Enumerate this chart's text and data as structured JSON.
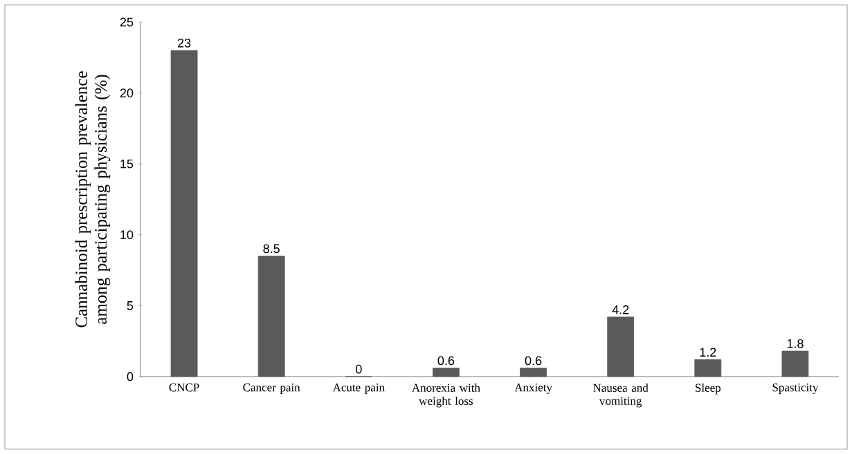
{
  "chart_data": {
    "type": "bar",
    "ylabel": "Cannabinoid prescription prevalence among participating physicians (%)",
    "categories": [
      "CNCP",
      "Cancer pain",
      "Acute pain",
      "Anorexia with weight loss",
      "Anxiety",
      "Nausea and vomiting",
      "Sleep",
      "Spasticity"
    ],
    "values": [
      23,
      8.5,
      0,
      0.6,
      0.6,
      4.2,
      1.2,
      1.8
    ],
    "color": "#5a5a5a",
    "ylim": [
      0,
      25
    ],
    "yticks": [
      0,
      5,
      10,
      15,
      20,
      25
    ],
    "grid": false,
    "data_labels": true
  }
}
